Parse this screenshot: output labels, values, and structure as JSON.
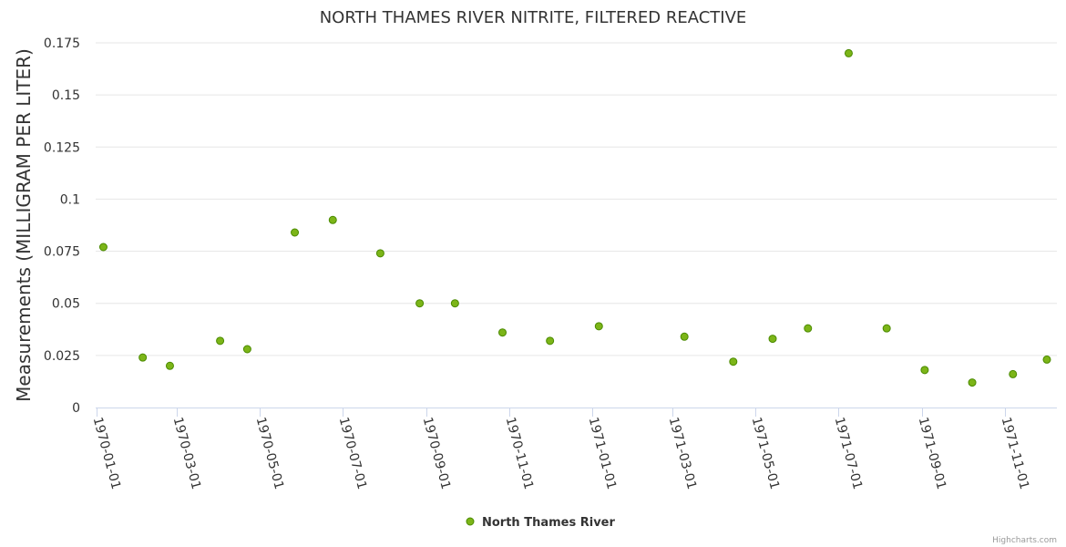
{
  "chart_data": {
    "type": "scatter",
    "title": "NORTH THAMES RIVER NITRITE, FILTERED REACTIVE",
    "xlabel": "",
    "ylabel": "Measurements (MILLIGRAM PER LITER)",
    "ylim": [
      0,
      0.175
    ],
    "yticks": [
      "0",
      "0.025",
      "0.05",
      "0.075",
      "0.1",
      "0.125",
      "0.15",
      "0.175"
    ],
    "xlim": [
      "1970-01-01",
      "1971-12-25"
    ],
    "xticks": [
      "1970-01-01",
      "1970-03-01",
      "1970-05-01",
      "1970-07-01",
      "1970-09-01",
      "1970-11-01",
      "1971-01-01",
      "1971-03-01",
      "1971-05-01",
      "1971-07-01",
      "1971-09-01",
      "1971-11-01"
    ],
    "grid": true,
    "legend_position": "bottom-center",
    "series": [
      {
        "name": "North Thames River",
        "color": "#7cb518",
        "points": [
          [
            "1970-01-06",
            0.077
          ],
          [
            "1970-02-04",
            0.024
          ],
          [
            "1970-02-24",
            0.02
          ],
          [
            "1970-04-02",
            0.032
          ],
          [
            "1970-04-22",
            0.028
          ],
          [
            "1970-05-27",
            0.084
          ],
          [
            "1970-06-24",
            0.09
          ],
          [
            "1970-07-29",
            0.074
          ],
          [
            "1970-08-27",
            0.05
          ],
          [
            "1970-09-22",
            0.05
          ],
          [
            "1970-10-27",
            0.036
          ],
          [
            "1970-12-01",
            0.032
          ],
          [
            "1971-01-06",
            0.039
          ],
          [
            "1971-03-10",
            0.034
          ],
          [
            "1971-04-15",
            0.022
          ],
          [
            "1971-05-14",
            0.033
          ],
          [
            "1971-06-09",
            0.038
          ],
          [
            "1971-07-09",
            0.17
          ],
          [
            "1971-08-06",
            0.038
          ],
          [
            "1971-09-03",
            0.018
          ],
          [
            "1971-10-08",
            0.012
          ],
          [
            "1971-11-07",
            0.016
          ],
          [
            "1971-12-02",
            0.023
          ]
        ]
      }
    ],
    "credit": "Highcharts.com"
  }
}
